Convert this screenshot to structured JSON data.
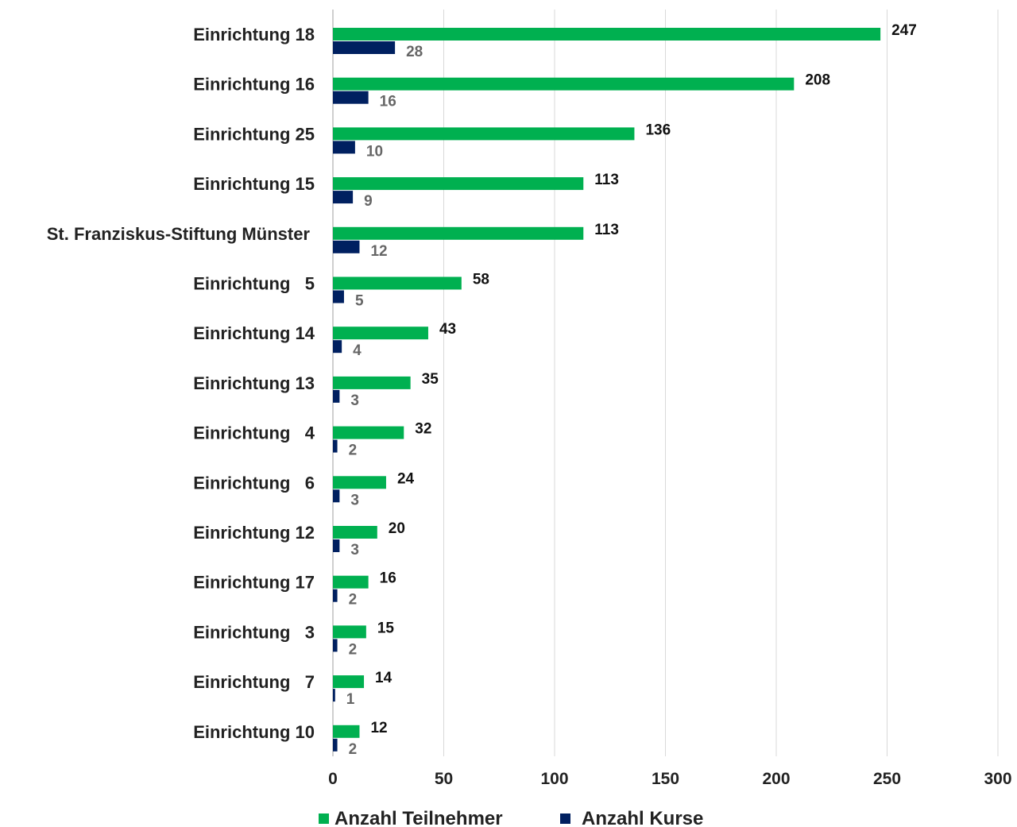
{
  "chart_data": {
    "type": "bar",
    "orientation": "horizontal",
    "categories": [
      "Einrichtung 18",
      "Einrichtung 16",
      "Einrichtung 25",
      "Einrichtung 15",
      "St. Franziskus-Stiftung Münster",
      "Einrichtung   5",
      "Einrichtung 14",
      "Einrichtung 13",
      "Einrichtung   4",
      "Einrichtung   6",
      "Einrichtung 12",
      "Einrichtung 17",
      "Einrichtung   3",
      "Einrichtung   7",
      "Einrichtung 10"
    ],
    "series": [
      {
        "name": "Anzahl Teilnehmer",
        "color": "#00b050",
        "values": [
          247,
          208,
          136,
          113,
          113,
          58,
          43,
          35,
          32,
          24,
          20,
          16,
          15,
          14,
          12
        ]
      },
      {
        "name": "Anzahl Kurse",
        "color": "#002060",
        "values": [
          28,
          16,
          10,
          9,
          12,
          5,
          4,
          3,
          2,
          3,
          3,
          2,
          2,
          1,
          2
        ]
      }
    ],
    "xlim": [
      0,
      300
    ],
    "xticks": [
      "0",
      "50",
      "100",
      "150",
      "200",
      "250",
      "300"
    ],
    "grid": true,
    "legend_position": "bottom",
    "data_labels": true
  }
}
